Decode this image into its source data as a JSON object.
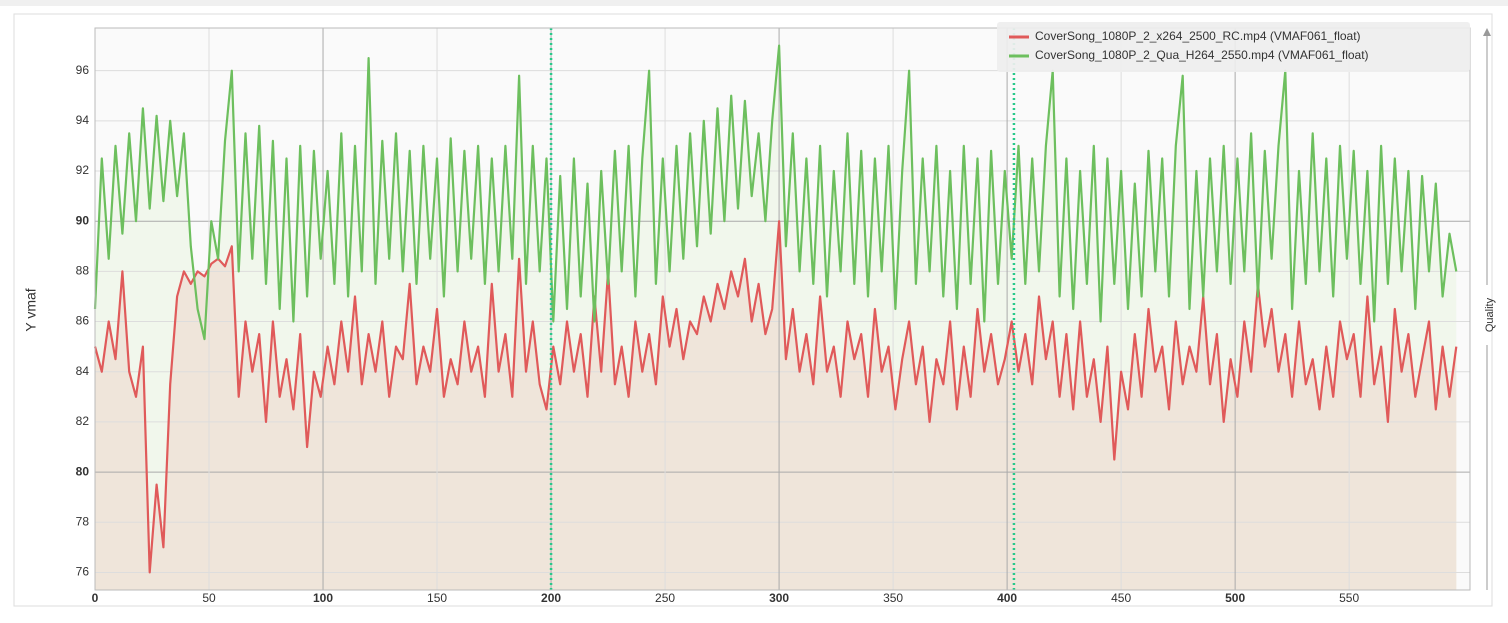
{
  "chart_data": {
    "type": "line",
    "y_label": "Y vmaf",
    "y2_label": "Quality",
    "x": [
      0,
      3,
      6,
      9,
      12,
      15,
      18,
      21,
      24,
      27,
      30,
      33,
      36,
      39,
      42,
      45,
      48,
      51,
      54,
      57,
      60,
      63,
      66,
      69,
      72,
      75,
      78,
      81,
      84,
      87,
      90,
      93,
      96,
      99,
      102,
      105,
      108,
      111,
      114,
      117,
      120,
      123,
      126,
      129,
      132,
      135,
      138,
      141,
      144,
      147,
      150,
      153,
      156,
      159,
      162,
      165,
      168,
      171,
      174,
      177,
      180,
      183,
      186,
      189,
      192,
      195,
      198,
      201,
      204,
      207,
      210,
      213,
      216,
      219,
      222,
      225,
      228,
      231,
      234,
      237,
      240,
      243,
      246,
      249,
      252,
      255,
      258,
      261,
      264,
      267,
      270,
      273,
      276,
      279,
      282,
      285,
      288,
      291,
      294,
      297,
      300,
      303,
      306,
      309,
      312,
      315,
      318,
      321,
      324,
      327,
      330,
      333,
      336,
      339,
      342,
      345,
      348,
      351,
      354,
      357,
      360,
      363,
      366,
      369,
      372,
      375,
      378,
      381,
      384,
      387,
      390,
      393,
      396,
      399,
      402,
      405,
      408,
      411,
      414,
      417,
      420,
      423,
      426,
      429,
      432,
      435,
      438,
      441,
      444,
      447,
      450,
      453,
      456,
      459,
      462,
      465,
      468,
      471,
      474,
      477,
      480,
      483,
      486,
      489,
      492,
      495,
      498,
      501,
      504,
      507,
      510,
      513,
      516,
      519,
      522,
      525,
      528,
      531,
      534,
      537,
      540,
      543,
      546,
      549,
      552,
      555,
      558,
      561,
      564,
      567,
      570,
      573,
      576,
      579,
      582,
      585,
      588,
      591,
      594,
      597
    ],
    "series": [
      {
        "name": "CoverSong_1080P_2_x264_2500_RC.mp4 (VMAF061_float)",
        "color": "#e05a5a",
        "fill": "#efe5da",
        "values": [
          85.0,
          84.0,
          86.0,
          84.5,
          88.0,
          84.0,
          83.0,
          85.0,
          76.0,
          79.5,
          77.0,
          83.5,
          87.0,
          88.0,
          87.5,
          88.0,
          87.8,
          88.3,
          88.5,
          88.2,
          89.0,
          83.0,
          86.0,
          84.0,
          85.5,
          82.0,
          86.0,
          83.0,
          84.5,
          82.5,
          85.5,
          81.0,
          84.0,
          83.0,
          85.0,
          83.5,
          86.0,
          84.0,
          87.0,
          83.5,
          85.5,
          84.0,
          86.0,
          83.0,
          85.0,
          84.5,
          87.5,
          83.5,
          85.0,
          84.0,
          86.5,
          83.0,
          84.5,
          83.5,
          86.0,
          84.0,
          85.0,
          83.0,
          87.5,
          84.0,
          85.5,
          83.0,
          88.5,
          84.0,
          86.0,
          83.5,
          82.5,
          85.0,
          83.5,
          86.0,
          84.0,
          85.5,
          83.0,
          87.0,
          84.0,
          88.0,
          83.5,
          85.0,
          83.0,
          86.0,
          84.0,
          85.5,
          83.5,
          87.0,
          85.0,
          86.5,
          84.5,
          86.0,
          85.5,
          87.0,
          86.0,
          87.5,
          86.5,
          88.0,
          87.0,
          88.5,
          86.0,
          87.5,
          85.5,
          86.5,
          90.0,
          84.5,
          86.5,
          84.0,
          85.5,
          83.5,
          87.0,
          84.0,
          85.0,
          83.0,
          86.0,
          84.5,
          85.5,
          83.0,
          86.5,
          84.0,
          85.0,
          82.5,
          84.5,
          86.0,
          83.5,
          85.0,
          82.0,
          84.5,
          83.5,
          86.0,
          82.5,
          85.0,
          83.0,
          86.5,
          84.0,
          85.5,
          83.5,
          84.5,
          86.0,
          84.0,
          85.5,
          83.5,
          87.0,
          84.5,
          86.0,
          83.0,
          85.5,
          82.5,
          86.0,
          83.0,
          84.5,
          82.0,
          85.0,
          80.5,
          84.0,
          82.5,
          85.5,
          83.0,
          86.5,
          84.0,
          85.0,
          82.5,
          86.0,
          83.5,
          85.0,
          84.0,
          87.0,
          83.5,
          85.5,
          82.0,
          84.5,
          83.0,
          86.0,
          84.0,
          87.5,
          85.0,
          86.5,
          84.0,
          85.5,
          83.0,
          86.0,
          83.5,
          84.5,
          82.5,
          85.0,
          83.0,
          86.0,
          84.5,
          85.5,
          83.0,
          87.0,
          83.5,
          85.0,
          82.0,
          86.5,
          84.0,
          85.5,
          83.0,
          84.5,
          86.0,
          82.5,
          85.0,
          83.0,
          85.0
        ]
      },
      {
        "name": "CoverSong_1080P_2_Qua_H264_2550.mp4 (VMAF061_float)",
        "color": "#6dbf5e",
        "fill": "#f1f7ec",
        "values": [
          86.5,
          92.5,
          88.5,
          93.0,
          89.5,
          93.5,
          90.0,
          94.5,
          90.5,
          94.2,
          90.8,
          94.0,
          91.0,
          93.5,
          89.0,
          86.5,
          85.3,
          90.0,
          88.5,
          93.2,
          96.0,
          88.0,
          93.5,
          88.5,
          93.8,
          87.5,
          93.2,
          86.5,
          92.5,
          86.0,
          93.0,
          87.0,
          92.8,
          88.5,
          92.0,
          87.5,
          93.5,
          87.0,
          93.0,
          88.0,
          96.5,
          87.5,
          93.2,
          88.5,
          93.5,
          88.0,
          92.8,
          87.5,
          93.0,
          88.5,
          92.5,
          87.0,
          93.3,
          88.0,
          92.8,
          88.5,
          93.0,
          87.5,
          92.5,
          88.0,
          93.0,
          88.5,
          95.8,
          87.5,
          93.0,
          88.0,
          92.5,
          86.0,
          91.8,
          86.5,
          92.5,
          87.0,
          91.5,
          86.0,
          92.0,
          87.5,
          92.8,
          88.0,
          93.0,
          87.0,
          92.5,
          96.0,
          87.5,
          92.5,
          88.0,
          93.0,
          88.5,
          93.5,
          89.0,
          94.0,
          89.5,
          94.5,
          90.0,
          95.0,
          90.5,
          94.8,
          91.0,
          93.5,
          90.0,
          94.0,
          97.0,
          89.0,
          93.5,
          88.0,
          92.5,
          87.5,
          93.0,
          87.0,
          92.0,
          88.0,
          93.5,
          87.5,
          92.8,
          87.0,
          92.5,
          88.0,
          93.0,
          86.5,
          92.0,
          96.0,
          87.5,
          92.5,
          88.0,
          93.0,
          87.0,
          92.0,
          86.5,
          93.0,
          87.5,
          92.5,
          86.0,
          92.8,
          87.5,
          92.0,
          88.5,
          93.0,
          87.5,
          92.5,
          88.0,
          93.0,
          96.0,
          87.0,
          92.5,
          86.5,
          92.0,
          87.5,
          93.0,
          86.0,
          92.5,
          87.5,
          92.0,
          86.5,
          91.5,
          87.0,
          92.8,
          88.0,
          92.5,
          87.0,
          93.0,
          95.8,
          86.5,
          92.0,
          87.0,
          92.5,
          88.0,
          93.0,
          87.5,
          92.5,
          88.0,
          93.5,
          87.0,
          92.8,
          88.5,
          93.0,
          96.0,
          86.5,
          92.0,
          87.5,
          93.5,
          88.0,
          92.5,
          87.0,
          93.0,
          88.5,
          92.8,
          87.5,
          92.0,
          86.0,
          93.0,
          87.5,
          92.5,
          88.0,
          92.0,
          86.5,
          91.8,
          88.0,
          91.5,
          87.0,
          89.5,
          88.0
        ]
      }
    ],
    "xlim": [
      0,
      603
    ],
    "xticks": [
      0,
      50,
      100,
      150,
      200,
      250,
      300,
      350,
      400,
      450,
      500,
      550
    ],
    "ylim": [
      75.3,
      97.7
    ],
    "yticks": [
      76,
      78,
      80,
      82,
      84,
      86,
      88,
      90,
      92,
      94,
      96
    ],
    "grid": true,
    "legend": "top-right",
    "markers": {
      "values": [
        200,
        403
      ],
      "color": "#27c98a"
    }
  }
}
